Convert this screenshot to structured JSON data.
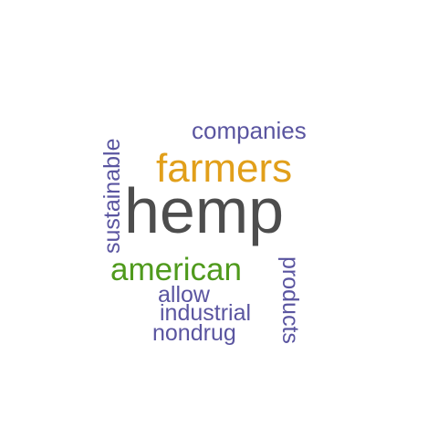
{
  "word_cloud": {
    "words": {
      "hemp": {
        "text": "hemp",
        "color": "#4d4d4d"
      },
      "farmers": {
        "text": "farmers",
        "color": "#e19f1a"
      },
      "companies": {
        "text": "companies",
        "color": "#5a55a0"
      },
      "american": {
        "text": "american",
        "color": "#4f9a1c"
      },
      "allow": {
        "text": "allow",
        "color": "#5a55a0"
      },
      "industrial": {
        "text": "industrial",
        "color": "#5a55a0"
      },
      "nondrug": {
        "text": "nondrug",
        "color": "#5a55a0"
      },
      "sustainable": {
        "text": "sustainable",
        "color": "#5a55a0"
      },
      "products": {
        "text": "products",
        "color": "#5a55a0"
      }
    }
  }
}
